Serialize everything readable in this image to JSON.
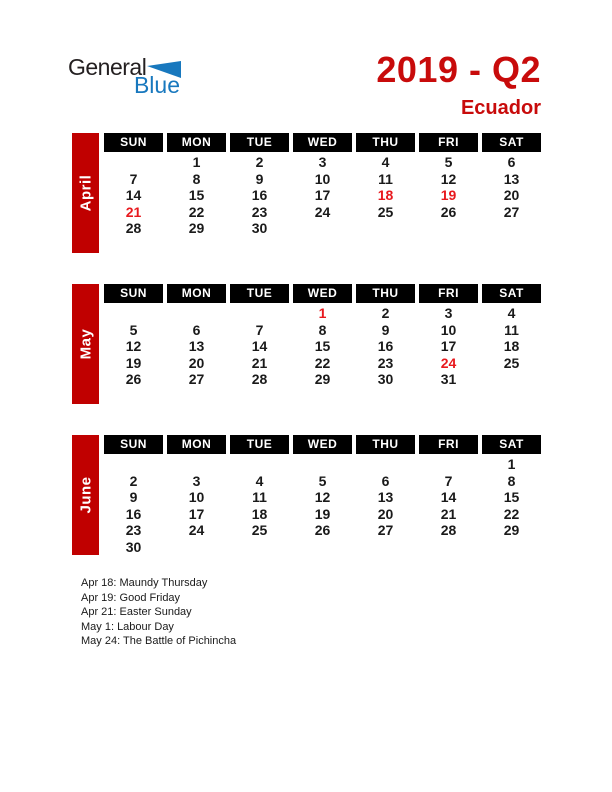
{
  "logo": {
    "text_black": "General",
    "text_blue": "Blue"
  },
  "title": {
    "heading": "2019 - Q2",
    "subheading": "Ecuador"
  },
  "weekdays": [
    "SUN",
    "MON",
    "TUE",
    "WED",
    "THU",
    "FRI",
    "SAT"
  ],
  "months": [
    {
      "name": "April",
      "holidays": [
        18,
        19,
        21
      ],
      "weeks": [
        [
          "",
          1,
          2,
          3,
          4,
          5,
          6
        ],
        [
          7,
          8,
          9,
          10,
          11,
          12,
          13
        ],
        [
          14,
          15,
          16,
          17,
          18,
          19,
          20
        ],
        [
          21,
          22,
          23,
          24,
          25,
          26,
          27
        ],
        [
          28,
          29,
          30,
          "",
          "",
          "",
          ""
        ],
        [
          "",
          "",
          "",
          "",
          "",
          "",
          ""
        ]
      ]
    },
    {
      "name": "May",
      "holidays": [
        1,
        24
      ],
      "weeks": [
        [
          "",
          "",
          "",
          1,
          2,
          3,
          4
        ],
        [
          5,
          6,
          7,
          8,
          9,
          10,
          11
        ],
        [
          12,
          13,
          14,
          15,
          16,
          17,
          18
        ],
        [
          19,
          20,
          21,
          22,
          23,
          24,
          25
        ],
        [
          26,
          27,
          28,
          29,
          30,
          31,
          ""
        ],
        [
          "",
          "",
          "",
          "",
          "",
          "",
          ""
        ]
      ]
    },
    {
      "name": "June",
      "holidays": [],
      "weeks": [
        [
          "",
          "",
          "",
          "",
          "",
          "",
          1
        ],
        [
          2,
          3,
          4,
          5,
          6,
          7,
          8
        ],
        [
          9,
          10,
          11,
          12,
          13,
          14,
          15
        ],
        [
          16,
          17,
          18,
          19,
          20,
          21,
          22
        ],
        [
          23,
          24,
          25,
          26,
          27,
          28,
          29
        ],
        [
          30,
          "",
          "",
          "",
          "",
          "",
          ""
        ]
      ]
    }
  ],
  "legend": [
    "Apr 18: Maundy Thursday",
    "Apr 19: Good Friday",
    "Apr 21: Easter Sunday",
    "May 1: Labour Day",
    "May 24: The Battle of Pichincha"
  ],
  "colors": {
    "bar_red": "#C00000",
    "title_red": "#C80B0B",
    "holiday_red": "#E8191E",
    "header_black": "#000000",
    "logo_blue": "#1878BE",
    "date_color": "#1A1A1A"
  }
}
